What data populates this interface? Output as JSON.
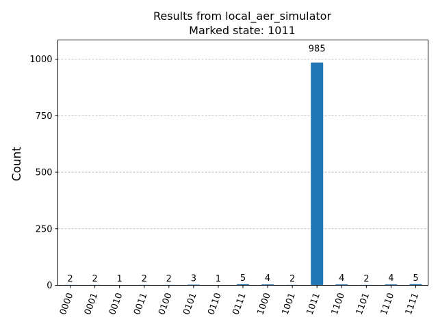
{
  "chart_data": {
    "type": "bar",
    "title": "Results from local_aer_simulator",
    "subtitle": "Marked state: 1011",
    "xlabel": "",
    "ylabel": "Count",
    "categories": [
      "0000",
      "0001",
      "0010",
      "0011",
      "0100",
      "0101",
      "0110",
      "0111",
      "1000",
      "1001",
      "1011",
      "1100",
      "1101",
      "1110",
      "1111"
    ],
    "values": [
      2,
      2,
      1,
      2,
      2,
      3,
      1,
      5,
      4,
      2,
      985,
      4,
      2,
      4,
      5
    ],
    "ylim": [
      0,
      1085
    ],
    "yticks": [
      0,
      250,
      500,
      750,
      1000
    ],
    "grid": "horizontal-dashed",
    "bar_color": "#1f77b4",
    "grid_color": "#b0b0b0"
  }
}
